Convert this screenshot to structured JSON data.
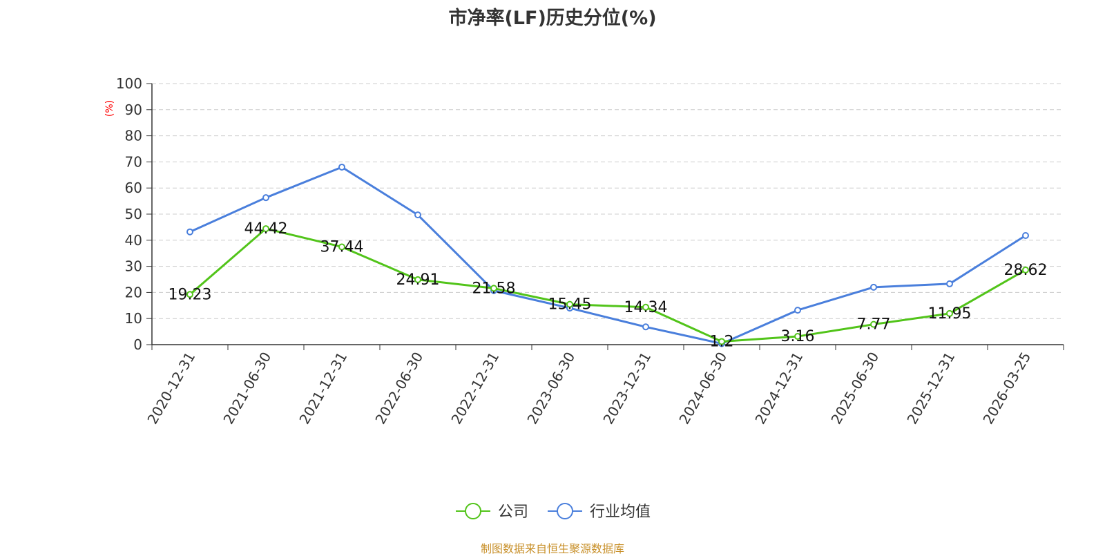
{
  "chart_data": {
    "type": "line",
    "title": "市净率(LF)历史分位(%)",
    "ylabel": "(%)",
    "xlabel": "",
    "ylim": [
      0,
      100
    ],
    "yticks": [
      0,
      10,
      20,
      30,
      40,
      50,
      60,
      70,
      80,
      90,
      100
    ],
    "grid": true,
    "legend_position": "bottom",
    "categories": [
      "2020-12-31",
      "2021-06-30",
      "2021-12-31",
      "2022-06-30",
      "2022-12-31",
      "2023-06-30",
      "2023-12-31",
      "2024-06-30",
      "2024-12-31",
      "2025-06-30",
      "2025-12-31",
      "2026-03-25"
    ],
    "series": [
      {
        "name": "公司",
        "color": "#52c41a",
        "values": [
          19.23,
          44.42,
          37.44,
          24.91,
          21.58,
          15.45,
          14.34,
          1.2,
          3.16,
          7.77,
          11.95,
          28.62
        ],
        "labels": [
          "19.23",
          "44.42",
          "37.44",
          "24.91",
          "21.58",
          "15.45",
          "14.34",
          "1.2",
          "3.16",
          "7.77",
          "11.95",
          "28.62"
        ]
      },
      {
        "name": "行业均值",
        "color": "#4a7fdc",
        "values": [
          43.2,
          56.3,
          68.0,
          49.7,
          20.7,
          14.0,
          6.8,
          0.4,
          13.2,
          22.0,
          23.3,
          41.8
        ]
      }
    ]
  },
  "source": "制图数据来自恒生聚源数据库"
}
